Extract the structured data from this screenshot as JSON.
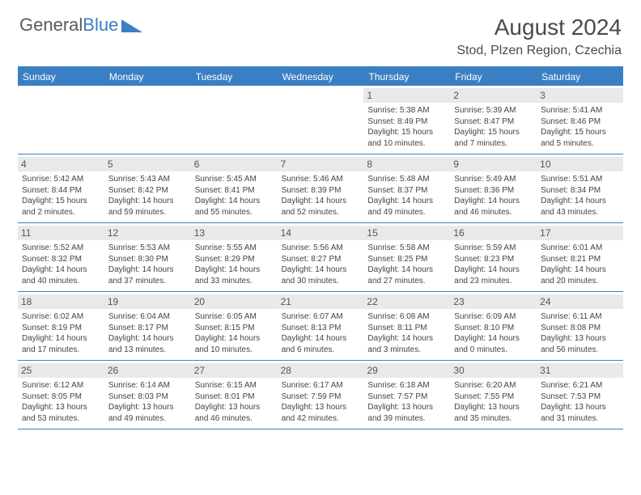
{
  "branding": {
    "logo_text_1": "General",
    "logo_text_2": "Blue",
    "logo_text_1_color": "#5a5a5a",
    "logo_text_2_color": "#3a7fc4",
    "logo_triangle_color": "#3a7fc4"
  },
  "header": {
    "month_title": "August 2024",
    "location": "Stod, Plzen Region, Czechia",
    "title_color": "#4a4a4a",
    "title_fontsize": 28,
    "location_fontsize": 16
  },
  "styling": {
    "weekday_bg": "#3a7fc4",
    "weekday_text_color": "#ffffff",
    "weekday_fontsize": 12,
    "daynum_bg": "#e8e9ea",
    "daynum_fontsize": 12,
    "body_fontsize": 10,
    "body_text_color": "#444444",
    "row_border_color": "#3a7fc4",
    "page_bg": "#ffffff"
  },
  "weekdays": [
    "Sunday",
    "Monday",
    "Tuesday",
    "Wednesday",
    "Thursday",
    "Friday",
    "Saturday"
  ],
  "weeks": [
    [
      {
        "empty": true
      },
      {
        "empty": true
      },
      {
        "empty": true
      },
      {
        "empty": true
      },
      {
        "num": "1",
        "sunrise": "Sunrise: 5:38 AM",
        "sunset": "Sunset: 8:49 PM",
        "day1": "Daylight: 15 hours",
        "day2": "and 10 minutes."
      },
      {
        "num": "2",
        "sunrise": "Sunrise: 5:39 AM",
        "sunset": "Sunset: 8:47 PM",
        "day1": "Daylight: 15 hours",
        "day2": "and 7 minutes."
      },
      {
        "num": "3",
        "sunrise": "Sunrise: 5:41 AM",
        "sunset": "Sunset: 8:46 PM",
        "day1": "Daylight: 15 hours",
        "day2": "and 5 minutes."
      }
    ],
    [
      {
        "num": "4",
        "sunrise": "Sunrise: 5:42 AM",
        "sunset": "Sunset: 8:44 PM",
        "day1": "Daylight: 15 hours",
        "day2": "and 2 minutes."
      },
      {
        "num": "5",
        "sunrise": "Sunrise: 5:43 AM",
        "sunset": "Sunset: 8:42 PM",
        "day1": "Daylight: 14 hours",
        "day2": "and 59 minutes."
      },
      {
        "num": "6",
        "sunrise": "Sunrise: 5:45 AM",
        "sunset": "Sunset: 8:41 PM",
        "day1": "Daylight: 14 hours",
        "day2": "and 55 minutes."
      },
      {
        "num": "7",
        "sunrise": "Sunrise: 5:46 AM",
        "sunset": "Sunset: 8:39 PM",
        "day1": "Daylight: 14 hours",
        "day2": "and 52 minutes."
      },
      {
        "num": "8",
        "sunrise": "Sunrise: 5:48 AM",
        "sunset": "Sunset: 8:37 PM",
        "day1": "Daylight: 14 hours",
        "day2": "and 49 minutes."
      },
      {
        "num": "9",
        "sunrise": "Sunrise: 5:49 AM",
        "sunset": "Sunset: 8:36 PM",
        "day1": "Daylight: 14 hours",
        "day2": "and 46 minutes."
      },
      {
        "num": "10",
        "sunrise": "Sunrise: 5:51 AM",
        "sunset": "Sunset: 8:34 PM",
        "day1": "Daylight: 14 hours",
        "day2": "and 43 minutes."
      }
    ],
    [
      {
        "num": "11",
        "sunrise": "Sunrise: 5:52 AM",
        "sunset": "Sunset: 8:32 PM",
        "day1": "Daylight: 14 hours",
        "day2": "and 40 minutes."
      },
      {
        "num": "12",
        "sunrise": "Sunrise: 5:53 AM",
        "sunset": "Sunset: 8:30 PM",
        "day1": "Daylight: 14 hours",
        "day2": "and 37 minutes."
      },
      {
        "num": "13",
        "sunrise": "Sunrise: 5:55 AM",
        "sunset": "Sunset: 8:29 PM",
        "day1": "Daylight: 14 hours",
        "day2": "and 33 minutes."
      },
      {
        "num": "14",
        "sunrise": "Sunrise: 5:56 AM",
        "sunset": "Sunset: 8:27 PM",
        "day1": "Daylight: 14 hours",
        "day2": "and 30 minutes."
      },
      {
        "num": "15",
        "sunrise": "Sunrise: 5:58 AM",
        "sunset": "Sunset: 8:25 PM",
        "day1": "Daylight: 14 hours",
        "day2": "and 27 minutes."
      },
      {
        "num": "16",
        "sunrise": "Sunrise: 5:59 AM",
        "sunset": "Sunset: 8:23 PM",
        "day1": "Daylight: 14 hours",
        "day2": "and 23 minutes."
      },
      {
        "num": "17",
        "sunrise": "Sunrise: 6:01 AM",
        "sunset": "Sunset: 8:21 PM",
        "day1": "Daylight: 14 hours",
        "day2": "and 20 minutes."
      }
    ],
    [
      {
        "num": "18",
        "sunrise": "Sunrise: 6:02 AM",
        "sunset": "Sunset: 8:19 PM",
        "day1": "Daylight: 14 hours",
        "day2": "and 17 minutes."
      },
      {
        "num": "19",
        "sunrise": "Sunrise: 6:04 AM",
        "sunset": "Sunset: 8:17 PM",
        "day1": "Daylight: 14 hours",
        "day2": "and 13 minutes."
      },
      {
        "num": "20",
        "sunrise": "Sunrise: 6:05 AM",
        "sunset": "Sunset: 8:15 PM",
        "day1": "Daylight: 14 hours",
        "day2": "and 10 minutes."
      },
      {
        "num": "21",
        "sunrise": "Sunrise: 6:07 AM",
        "sunset": "Sunset: 8:13 PM",
        "day1": "Daylight: 14 hours",
        "day2": "and 6 minutes."
      },
      {
        "num": "22",
        "sunrise": "Sunrise: 6:08 AM",
        "sunset": "Sunset: 8:11 PM",
        "day1": "Daylight: 14 hours",
        "day2": "and 3 minutes."
      },
      {
        "num": "23",
        "sunrise": "Sunrise: 6:09 AM",
        "sunset": "Sunset: 8:10 PM",
        "day1": "Daylight: 14 hours",
        "day2": "and 0 minutes."
      },
      {
        "num": "24",
        "sunrise": "Sunrise: 6:11 AM",
        "sunset": "Sunset: 8:08 PM",
        "day1": "Daylight: 13 hours",
        "day2": "and 56 minutes."
      }
    ],
    [
      {
        "num": "25",
        "sunrise": "Sunrise: 6:12 AM",
        "sunset": "Sunset: 8:05 PM",
        "day1": "Daylight: 13 hours",
        "day2": "and 53 minutes."
      },
      {
        "num": "26",
        "sunrise": "Sunrise: 6:14 AM",
        "sunset": "Sunset: 8:03 PM",
        "day1": "Daylight: 13 hours",
        "day2": "and 49 minutes."
      },
      {
        "num": "27",
        "sunrise": "Sunrise: 6:15 AM",
        "sunset": "Sunset: 8:01 PM",
        "day1": "Daylight: 13 hours",
        "day2": "and 46 minutes."
      },
      {
        "num": "28",
        "sunrise": "Sunrise: 6:17 AM",
        "sunset": "Sunset: 7:59 PM",
        "day1": "Daylight: 13 hours",
        "day2": "and 42 minutes."
      },
      {
        "num": "29",
        "sunrise": "Sunrise: 6:18 AM",
        "sunset": "Sunset: 7:57 PM",
        "day1": "Daylight: 13 hours",
        "day2": "and 39 minutes."
      },
      {
        "num": "30",
        "sunrise": "Sunrise: 6:20 AM",
        "sunset": "Sunset: 7:55 PM",
        "day1": "Daylight: 13 hours",
        "day2": "and 35 minutes."
      },
      {
        "num": "31",
        "sunrise": "Sunrise: 6:21 AM",
        "sunset": "Sunset: 7:53 PM",
        "day1": "Daylight: 13 hours",
        "day2": "and 31 minutes."
      }
    ]
  ]
}
